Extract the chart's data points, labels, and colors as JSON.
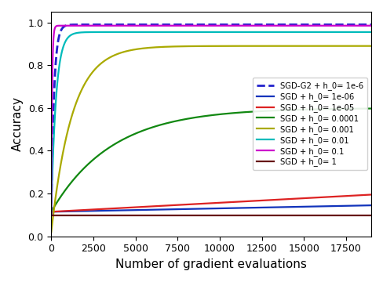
{
  "title": "",
  "xlabel": "Number of gradient evaluations",
  "ylabel": "Accuracy",
  "xlim": [
    0,
    19000
  ],
  "ylim": [
    0.0,
    1.05
  ],
  "x_max": 19000,
  "n_points": 1000,
  "curves": [
    {
      "label": "SGD-G2 + h_0= 1e-6",
      "color": "#2222cc",
      "linestyle": "--",
      "linewidth": 2.0,
      "type": "saturation",
      "y_start": 0.1,
      "y_end": 0.99,
      "rate": 0.006
    },
    {
      "label": "SGD + h_0= 1e-06",
      "color": "#1133bb",
      "linestyle": "-",
      "linewidth": 1.6,
      "type": "linear",
      "y_start": 0.115,
      "y_end": 0.145
    },
    {
      "label": "SGD + h_0= 1e-05",
      "color": "#dd2222",
      "linestyle": "-",
      "linewidth": 1.6,
      "type": "linear",
      "y_start": 0.115,
      "y_end": 0.195
    },
    {
      "label": "SGD + h_0= 0.0001",
      "color": "#118811",
      "linestyle": "-",
      "linewidth": 1.6,
      "type": "saturation",
      "y_start": 0.115,
      "y_end": 0.6,
      "rate": 0.00028
    },
    {
      "label": "SGD + h_0= 0.001",
      "color": "#aaaa00",
      "linestyle": "-",
      "linewidth": 1.6,
      "type": "saturation",
      "y_start": 0.02,
      "y_end": 0.89,
      "rate": 0.0008
    },
    {
      "label": "SGD + h_0= 0.01",
      "color": "#00bbbb",
      "linestyle": "-",
      "linewidth": 1.6,
      "type": "saturation",
      "y_start": 0.115,
      "y_end": 0.955,
      "rate": 0.0035
    },
    {
      "label": "SGD + h_0= 0.1",
      "color": "#cc00cc",
      "linestyle": "-",
      "linewidth": 1.6,
      "type": "saturation",
      "y_start": 0.1,
      "y_end": 0.985,
      "rate": 0.02
    },
    {
      "label": "SGD + h_0= 1",
      "color": "#661111",
      "linestyle": "-",
      "linewidth": 1.6,
      "type": "flat",
      "y_start": 0.098,
      "y_end": 0.098,
      "rate": 0.0
    }
  ],
  "legend_loc": "center right",
  "legend_fontsize": 7.2,
  "tick_fontsize": 9,
  "label_fontsize": 11,
  "xticks": [
    0,
    2500,
    5000,
    7500,
    10000,
    12500,
    15000,
    17500
  ],
  "background_color": "#ffffff"
}
